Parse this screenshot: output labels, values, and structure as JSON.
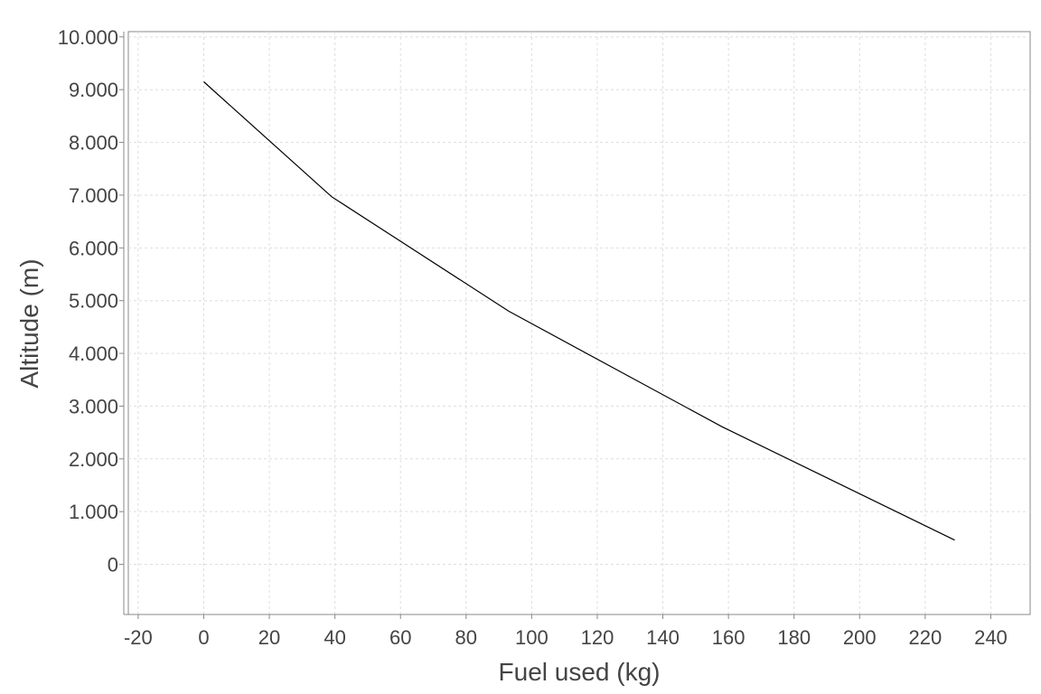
{
  "chart_data": {
    "type": "line",
    "title": "",
    "xlabel": "Fuel used (kg)",
    "ylabel": "Altitude (m)",
    "xlim": [
      -23,
      252
    ],
    "ylim": [
      -950,
      10100
    ],
    "x_ticks": [
      {
        "value": -20,
        "label": "-20"
      },
      {
        "value": 0,
        "label": "0"
      },
      {
        "value": 20,
        "label": "20"
      },
      {
        "value": 40,
        "label": "40"
      },
      {
        "value": 60,
        "label": "60"
      },
      {
        "value": 80,
        "label": "80"
      },
      {
        "value": 100,
        "label": "100"
      },
      {
        "value": 120,
        "label": "120"
      },
      {
        "value": 140,
        "label": "140"
      },
      {
        "value": 160,
        "label": "160"
      },
      {
        "value": 180,
        "label": "180"
      },
      {
        "value": 200,
        "label": "200"
      },
      {
        "value": 220,
        "label": "220"
      },
      {
        "value": 240,
        "label": "240"
      }
    ],
    "y_ticks": [
      {
        "value": 0,
        "label": "0"
      },
      {
        "value": 1000,
        "label": "1.000"
      },
      {
        "value": 2000,
        "label": "2.000"
      },
      {
        "value": 3000,
        "label": "3.000"
      },
      {
        "value": 4000,
        "label": "4.000"
      },
      {
        "value": 5000,
        "label": "5.000"
      },
      {
        "value": 6000,
        "label": "6.000"
      },
      {
        "value": 7000,
        "label": "7.000"
      },
      {
        "value": 8000,
        "label": "8.000"
      },
      {
        "value": 9000,
        "label": "9.000"
      },
      {
        "value": 10000,
        "label": "10.000"
      }
    ],
    "grid": true,
    "legend": "none",
    "series": [
      {
        "color": "#000000",
        "x": [
          0,
          39,
          93,
          158,
          229
        ],
        "y": [
          9150,
          6970,
          4800,
          2610,
          460
        ]
      }
    ]
  }
}
